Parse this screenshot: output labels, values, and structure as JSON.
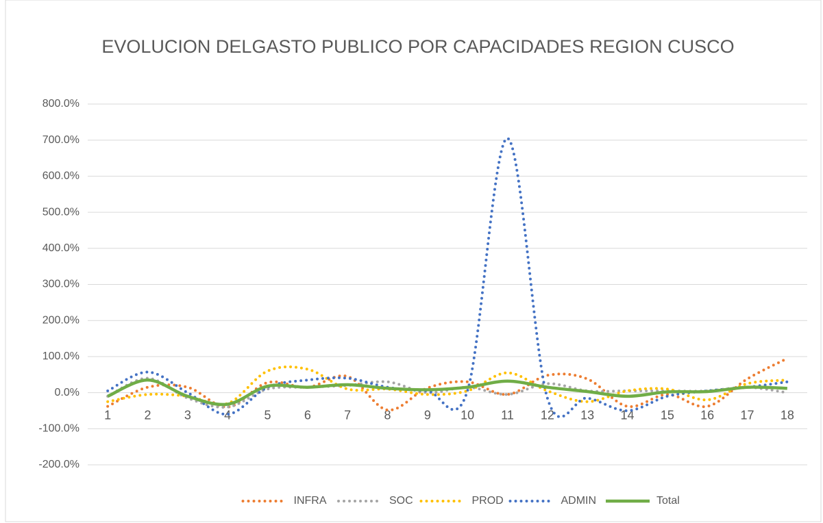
{
  "chart_data": {
    "type": "line",
    "title": "EVOLUCION DELGASTO PUBLICO POR CAPACIDADES REGION CUSCO",
    "categories": [
      "1",
      "2",
      "3",
      "4",
      "5",
      "6",
      "7",
      "8",
      "9",
      "10",
      "11",
      "12",
      "13",
      "14",
      "15",
      "16",
      "17",
      "18"
    ],
    "series": [
      {
        "name": "INFRA",
        "color": "#ed7d31",
        "dash": "dotted",
        "values": [
          -38,
          15,
          15,
          -40,
          28,
          15,
          45,
          -48,
          13,
          30,
          -5,
          48,
          38,
          -38,
          -5,
          -38,
          38,
          95
        ]
      },
      {
        "name": "SOC",
        "color": "#a5a5a5",
        "dash": "dotted",
        "values": [
          -10,
          40,
          -15,
          -40,
          10,
          15,
          20,
          30,
          0,
          15,
          -5,
          25,
          5,
          5,
          5,
          5,
          15,
          0
        ]
      },
      {
        "name": "PROD",
        "color": "#ffc000",
        "dash": "dotted",
        "values": [
          -25,
          -5,
          -10,
          -30,
          60,
          65,
          10,
          10,
          -5,
          5,
          55,
          5,
          -25,
          5,
          10,
          -20,
          25,
          35
        ]
      },
      {
        "name": "ADMIN",
        "color": "#4472c4",
        "dash": "dotted",
        "values": [
          5,
          57,
          0,
          -60,
          15,
          35,
          40,
          15,
          5,
          5,
          705,
          -15,
          -15,
          -50,
          -10,
          5,
          15,
          30
        ]
      },
      {
        "name": "Total",
        "color": "#70ad47",
        "dash": "solid",
        "values": [
          -10,
          35,
          -10,
          -32,
          18,
          15,
          22,
          12,
          8,
          15,
          32,
          15,
          3,
          -10,
          2,
          3,
          15,
          12
        ]
      }
    ],
    "ylim": [
      -200,
      800
    ],
    "yticks": [
      {
        "value": -200,
        "label": "-200.0%"
      },
      {
        "value": -100,
        "label": "-100.0%"
      },
      {
        "value": 0,
        "label": "0.0%"
      },
      {
        "value": 100,
        "label": "100.0%"
      },
      {
        "value": 200,
        "label": "200.0%"
      },
      {
        "value": 300,
        "label": "300.0%"
      },
      {
        "value": 400,
        "label": "400.0%"
      },
      {
        "value": 500,
        "label": "500.0%"
      },
      {
        "value": 600,
        "label": "600.0%"
      },
      {
        "value": 700,
        "label": "700.0%"
      },
      {
        "value": 800,
        "label": "800.0%"
      }
    ],
    "grid": true,
    "smooth": true,
    "legend": "bottom"
  }
}
